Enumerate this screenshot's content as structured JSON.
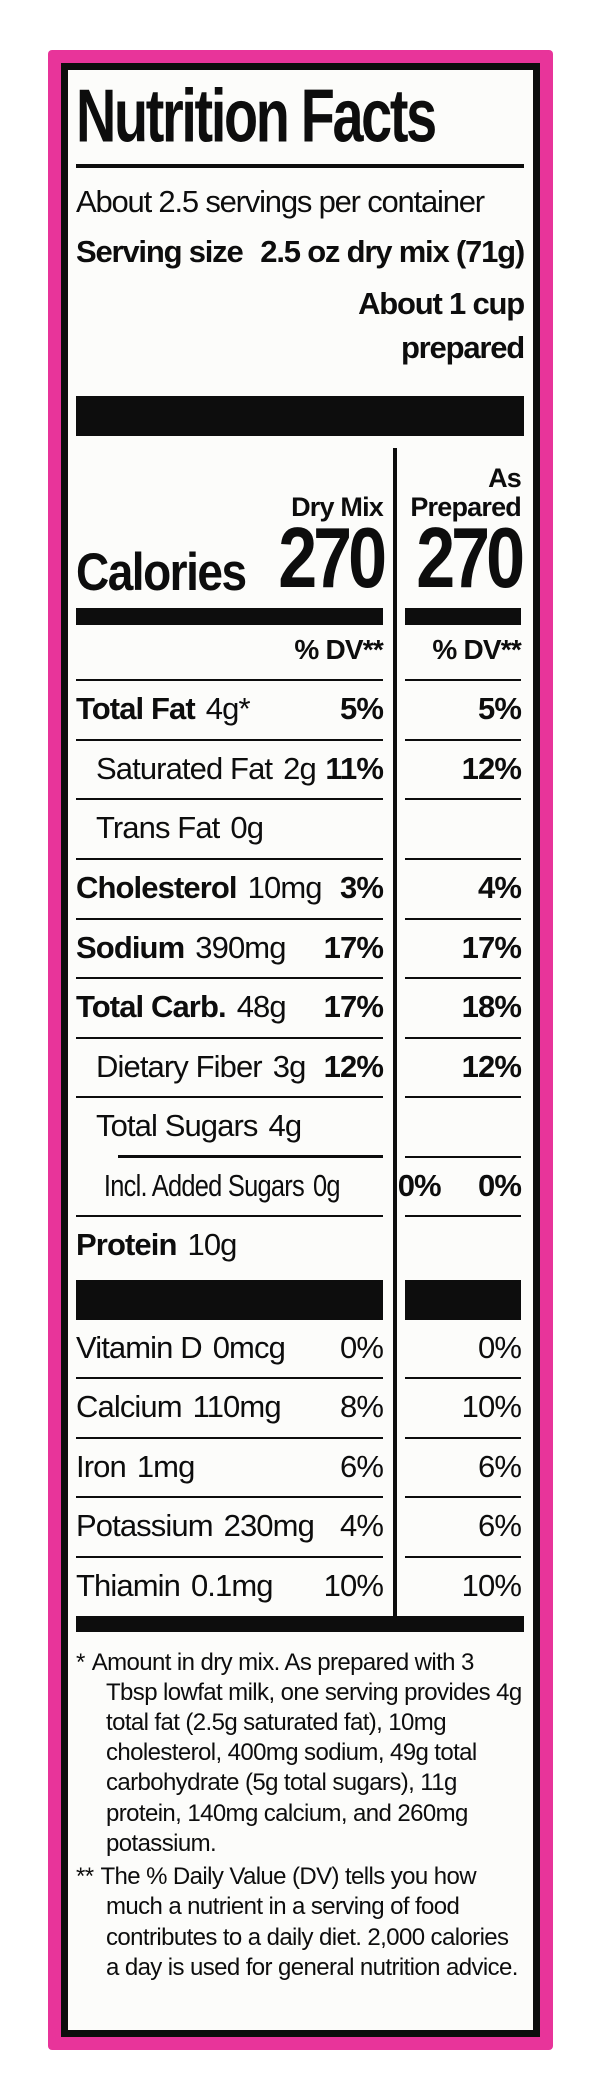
{
  "colors": {
    "pink": "#e8349a",
    "ink": "#0d0d0d",
    "paper": "#fcfcfa"
  },
  "label": {
    "title": "Nutrition Facts",
    "servings_per_container": "About 2.5 servings per container",
    "serving_size_label": "Serving size",
    "serving_size_value": "2.5 oz dry mix (71g)",
    "serving_size_alt_line1": "About 1 cup",
    "serving_size_alt_line2": "prepared",
    "column_headers": {
      "dry_mix": "Dry Mix",
      "as_prepared_line1": "As",
      "as_prepared_line2": "Prepared"
    },
    "calories": {
      "label": "Calories",
      "dry_mix": "270",
      "as_prepared": "270"
    },
    "dv_header": {
      "dry_mix": "% DV**",
      "as_prepared": "% DV**"
    },
    "rows_main": [
      {
        "name": "Total Fat",
        "amount": "4g*",
        "dv_dry": "5%",
        "dv_prepared": "5%",
        "bold_name": true,
        "bold_dv": true,
        "indent": 0
      },
      {
        "name": "Saturated Fat",
        "amount": "2g",
        "dv_dry": "11%",
        "dv_prepared": "12%",
        "bold_name": false,
        "bold_dv": true,
        "indent": 1
      },
      {
        "name": "Trans Fat",
        "amount": "0g",
        "dv_dry": "",
        "dv_prepared": "",
        "bold_name": false,
        "bold_dv": false,
        "indent": 1
      },
      {
        "name": "Cholesterol",
        "amount": "10mg",
        "dv_dry": "3%",
        "dv_prepared": "4%",
        "bold_name": true,
        "bold_dv": true,
        "indent": 0
      },
      {
        "name": "Sodium",
        "amount": "390mg",
        "dv_dry": "17%",
        "dv_prepared": "17%",
        "bold_name": true,
        "bold_dv": true,
        "indent": 0
      },
      {
        "name": "Total Carb.",
        "amount": "48g",
        "dv_dry": "17%",
        "dv_prepared": "18%",
        "bold_name": true,
        "bold_dv": true,
        "indent": 0
      },
      {
        "name": "Dietary Fiber",
        "amount": "3g",
        "dv_dry": "12%",
        "dv_prepared": "12%",
        "bold_name": false,
        "bold_dv": true,
        "indent": 1
      },
      {
        "name": "Total Sugars",
        "amount": "4g",
        "dv_dry": "",
        "dv_prepared": "",
        "bold_name": false,
        "bold_dv": false,
        "indent": 1
      },
      {
        "name": "Incl. Added Sugars",
        "amount": "0g",
        "dv_dry": "0%",
        "dv_prepared": "0%",
        "bold_name": false,
        "bold_dv": true,
        "indent": 2,
        "indent_line": true,
        "tight": true
      },
      {
        "name": "Protein",
        "amount": "10g",
        "dv_dry": "",
        "dv_prepared": "",
        "bold_name": true,
        "bold_dv": false,
        "indent": 0
      }
    ],
    "rows_vitamins": [
      {
        "name": "Vitamin D",
        "amount": "0mcg",
        "dv_dry": "0%",
        "dv_prepared": "0%",
        "bold_name": false,
        "bold_dv": false,
        "indent": 0
      },
      {
        "name": "Calcium",
        "amount": "110mg",
        "dv_dry": "8%",
        "dv_prepared": "10%",
        "bold_name": false,
        "bold_dv": false,
        "indent": 0
      },
      {
        "name": "Iron",
        "amount": "1mg",
        "dv_dry": "6%",
        "dv_prepared": "6%",
        "bold_name": false,
        "bold_dv": false,
        "indent": 0
      },
      {
        "name": "Potassium",
        "amount": "230mg",
        "dv_dry": "4%",
        "dv_prepared": "6%",
        "bold_name": false,
        "bold_dv": false,
        "indent": 0
      },
      {
        "name": "Thiamin",
        "amount": "0.1mg",
        "dv_dry": "10%",
        "dv_prepared": "10%",
        "bold_name": false,
        "bold_dv": false,
        "indent": 0
      }
    ],
    "footnotes": [
      {
        "marker": "*",
        "text": "Amount in dry mix. As prepared with 3 Tbsp lowfat milk, one serving provides 4g total fat (2.5g saturated fat), 10mg cholesterol, 400mg sodium, 49g total carbohydrate (5g total sugars), 11g protein, 140mg calcium, and 260mg potassium."
      },
      {
        "marker": "**",
        "text": "The % Daily Value (DV) tells you how much a nutrient in a serving of food contributes to a daily diet. 2,000 calories a day is used for general nutrition advice."
      }
    ]
  }
}
